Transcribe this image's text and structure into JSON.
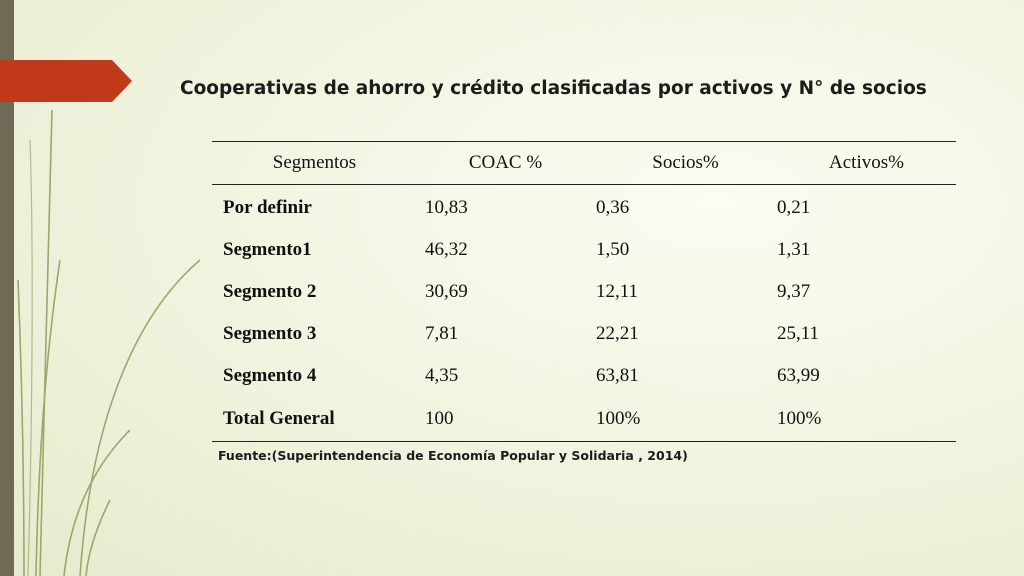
{
  "slide": {
    "title": "Cooperativas de ahorro y crédito clasificadas por activos y N° de socios",
    "source": "Fuente:(Superintendencia de Economía Popular y Solidaria , 2014)",
    "colors": {
      "accent_tab": "#c0391b",
      "left_bar": "#6f6a55",
      "stems": "#8f9a5c"
    }
  },
  "table": {
    "headers": [
      "Segmentos",
      "COAC %",
      "Socios%",
      "Activos%"
    ],
    "rows": [
      [
        "Por definir",
        "10,83",
        "0,36",
        "0,21"
      ],
      [
        "Segmento1",
        "46,32",
        "1,50",
        "1,31"
      ],
      [
        "Segmento 2",
        "30,69",
        "12,11",
        "9,37"
      ],
      [
        "Segmento 3",
        "7,81",
        "22,21",
        "25,11"
      ],
      [
        "Segmento 4",
        "4,35",
        "63,81",
        "63,99"
      ],
      [
        "Total General",
        "100",
        "100%",
        "100%"
      ]
    ]
  }
}
